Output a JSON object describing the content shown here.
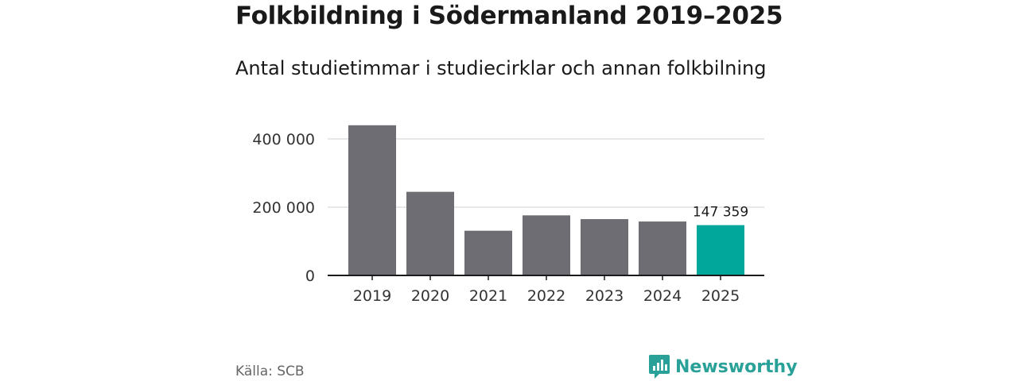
{
  "title": "Folkbildning i Södermanland 2019–2025",
  "subtitle": "Antal studietimmar i studiecirklar och annan folkbilning",
  "source": "Källa: SCB",
  "logo": {
    "text": "Newsworthy",
    "icon": "newsworthy-logo-icon"
  },
  "colors": {
    "bar": "#6e6d73",
    "highlight": "#00a79a",
    "grid": "#d9d9d9",
    "axis": "#1a1a1a",
    "brand": "#2aa198"
  },
  "chart_data": {
    "type": "bar",
    "title": "Folkbildning i Södermanland 2019–2025",
    "subtitle": "Antal studietimmar i studiecirklar och annan folkbilning",
    "xlabel": "",
    "ylabel": "",
    "categories": [
      "2019",
      "2020",
      "2021",
      "2022",
      "2023",
      "2024",
      "2025"
    ],
    "values": [
      440000,
      245000,
      131000,
      176000,
      165000,
      158000,
      147359
    ],
    "highlight_index": 6,
    "ylim": [
      0,
      440000
    ],
    "yticks": [
      0,
      200000,
      400000
    ],
    "ytick_labels": [
      "0",
      "200 000",
      "400 000"
    ],
    "data_labels": [
      {
        "index": 6,
        "text": "147 359"
      }
    ],
    "grid": true,
    "legend": "none"
  }
}
